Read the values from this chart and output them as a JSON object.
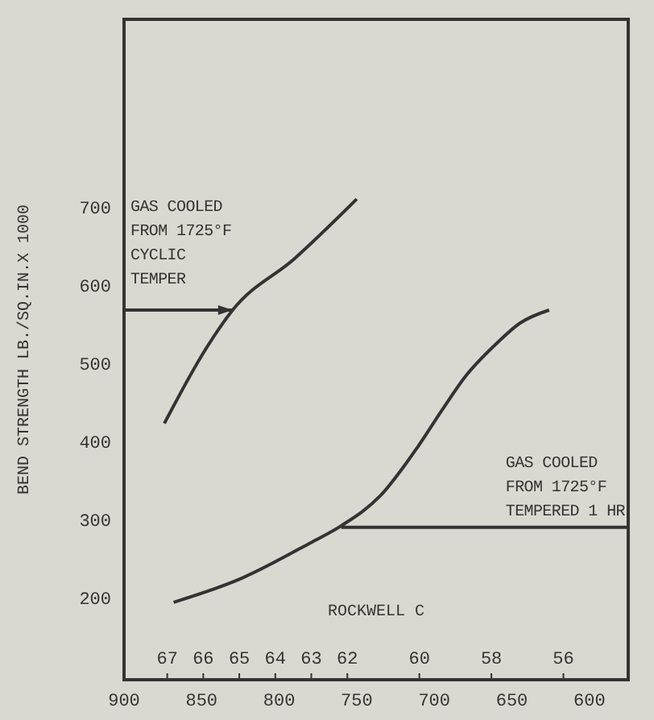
{
  "chart_data": {
    "type": "line",
    "ylabel": "BEND STRENGTH LB./SQ.IN.X 1000",
    "x2label": "ROCKWELL C",
    "xlim": [
      900,
      575
    ],
    "xticks": [
      900,
      850,
      800,
      750,
      700,
      650,
      600
    ],
    "x2lim": [
      68.2,
      54.2
    ],
    "x2ticks": [
      67,
      66,
      65,
      64,
      63,
      62,
      60,
      58,
      56
    ],
    "ylim": [
      95,
      940
    ],
    "yticks": [
      200,
      300,
      400,
      500,
      600,
      700
    ],
    "marker": "none",
    "line_style": "solid",
    "series": [
      {
        "color": "#333333",
        "x": [
          874,
          848,
          830,
          790,
          750
        ],
        "values": [
          423,
          516,
          568,
          634,
          710
        ]
      },
      {
        "color": "#333333",
        "x": [
          868,
          824,
          780,
          760,
          735,
          711,
          695,
          680,
          660,
          645,
          626
        ],
        "values": [
          194,
          225,
          270,
          292,
          330,
          392,
          440,
          483,
          525,
          551,
          568
        ]
      }
    ],
    "annotations": [
      {
        "text": "GAS COOLED\nFROM 1725°F\nCYCLIC\nTEMPER",
        "x": 830,
        "y": 568
      },
      {
        "text": "GAS COOLED\nFROM 1725°F\nTEMPERED 1 HR",
        "x": 760,
        "y": 290
      }
    ]
  }
}
